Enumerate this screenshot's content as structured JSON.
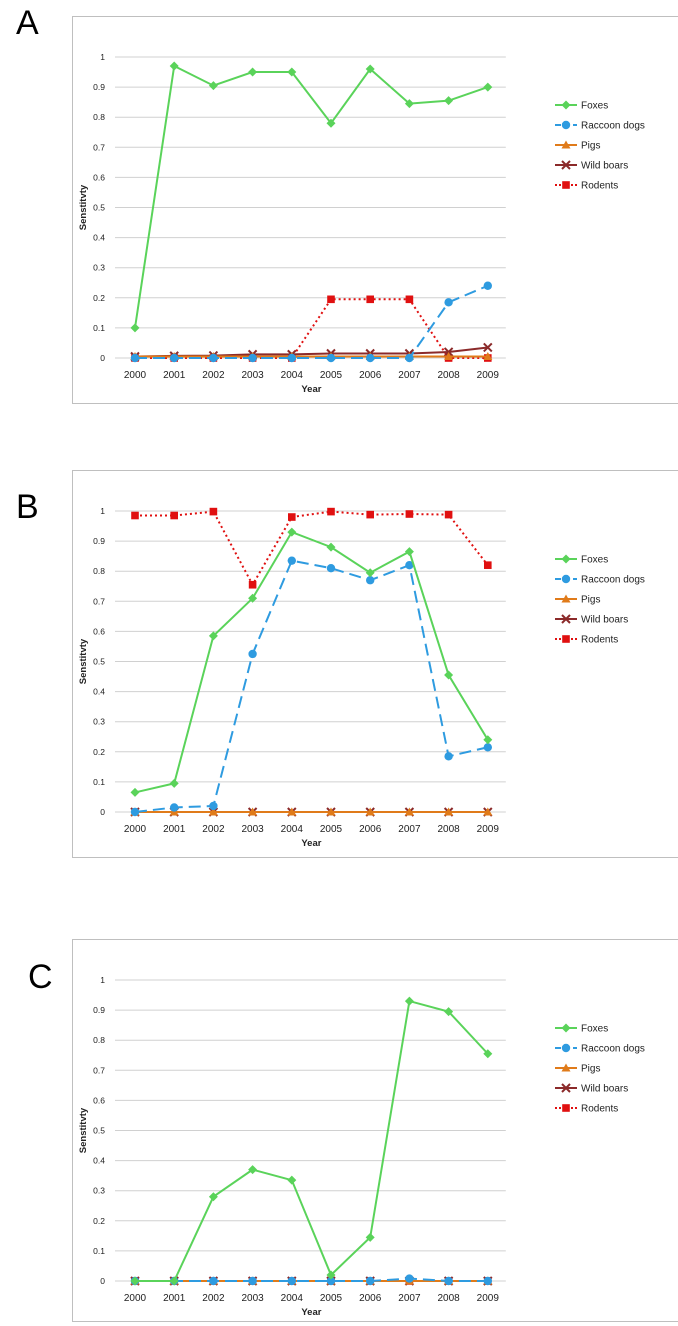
{
  "colors": {
    "foxes": "#5ad35a",
    "raccoon": "#2e9be0",
    "pigs": "#e07b1a",
    "boars": "#8b2a2a",
    "rodents": "#e01010",
    "grid": "#d0d0d0"
  },
  "legend_labels": [
    "Foxes",
    "Raccoon dogs",
    "Pigs",
    "Wild boars",
    "Rodents"
  ],
  "chart_data": [
    {
      "type": "line",
      "panel_label": "A",
      "xlabel": "Year",
      "ylabel": "Senstitvty",
      "ylim": [
        0,
        1
      ],
      "yticks": [
        "0",
        "0.1",
        "0.2",
        "0.3",
        "0.4",
        "0.5",
        "0.6",
        "0.7",
        "0.8",
        "0.9",
        "1"
      ],
      "categories": [
        "2000",
        "2001",
        "2002",
        "2003",
        "2004",
        "2005",
        "2006",
        "2007",
        "2008",
        "2009"
      ],
      "grid": true,
      "legend_position": "right",
      "series": [
        {
          "name": "Foxes",
          "values": [
            0.1,
            0.97,
            0.905,
            0.95,
            0.95,
            0.78,
            0.96,
            0.845,
            0.855,
            0.9
          ]
        },
        {
          "name": "Raccoon dogs",
          "values": [
            0,
            0,
            0,
            0,
            0,
            0,
            0,
            0,
            0.185,
            0.24
          ]
        },
        {
          "name": "Pigs",
          "values": [
            0.005,
            0.005,
            0.005,
            0.005,
            0.005,
            0.005,
            0.005,
            0.005,
            0.005,
            0.005
          ]
        },
        {
          "name": "Wild boars",
          "values": [
            0.005,
            0.007,
            0.008,
            0.012,
            0.012,
            0.015,
            0.015,
            0.015,
            0.02,
            0.035
          ]
        },
        {
          "name": "Rodents",
          "values": [
            0,
            0,
            0,
            0,
            0,
            0.195,
            0.195,
            0.195,
            0,
            0
          ]
        }
      ]
    },
    {
      "type": "line",
      "panel_label": "B",
      "xlabel": "Year",
      "ylabel": "Senstitvty",
      "ylim": [
        0,
        1
      ],
      "yticks": [
        "0",
        "0.1",
        "0.2",
        "0.3",
        "0.4",
        "0.5",
        "0.6",
        "0.7",
        "0.8",
        "0.9",
        "1"
      ],
      "categories": [
        "2000",
        "2001",
        "2002",
        "2003",
        "2004",
        "2005",
        "2006",
        "2007",
        "2008",
        "2009"
      ],
      "grid": true,
      "legend_position": "right",
      "series": [
        {
          "name": "Foxes",
          "values": [
            0.065,
            0.095,
            0.585,
            0.71,
            0.93,
            0.88,
            0.795,
            0.865,
            0.455,
            0.24
          ]
        },
        {
          "name": "Raccoon dogs",
          "values": [
            0,
            0.015,
            0.02,
            0.525,
            0.835,
            0.81,
            0.77,
            0.82,
            0.185,
            0.215
          ]
        },
        {
          "name": "Pigs",
          "values": [
            0,
            0,
            0,
            0,
            0,
            0,
            0,
            0,
            0,
            0
          ]
        },
        {
          "name": "Wild boars",
          "values": [
            0,
            0,
            0,
            0,
            0,
            0,
            0,
            0,
            0,
            0
          ]
        },
        {
          "name": "Rodents",
          "values": [
            0.985,
            0.985,
            0.998,
            0.755,
            0.98,
            0.998,
            0.988,
            0.99,
            0.988,
            0.82
          ]
        }
      ]
    },
    {
      "type": "line",
      "panel_label": "C",
      "xlabel": "Year",
      "ylabel": "Senstitvty",
      "ylim": [
        0,
        1
      ],
      "yticks": [
        "0",
        "0.1",
        "0.2",
        "0.3",
        "0.4",
        "0.5",
        "0.6",
        "0.7",
        "0.8",
        "0.9",
        "1"
      ],
      "categories": [
        "2000",
        "2001",
        "2002",
        "2003",
        "2004",
        "2005",
        "2006",
        "2007",
        "2008",
        "2009"
      ],
      "grid": true,
      "legend_position": "right",
      "series": [
        {
          "name": "Foxes",
          "values": [
            0,
            0,
            0.28,
            0.37,
            0.335,
            0.02,
            0.145,
            0.93,
            0.895,
            0.755
          ]
        },
        {
          "name": "Raccoon dogs",
          "values": [
            0,
            0,
            0,
            0,
            0,
            0,
            0,
            0.008,
            0,
            0
          ]
        },
        {
          "name": "Pigs",
          "values": [
            0,
            0,
            0,
            0,
            0,
            0,
            0,
            0,
            0,
            0
          ]
        },
        {
          "name": "Wild boars",
          "values": [
            0,
            0,
            0,
            0,
            0,
            0,
            0,
            0,
            0,
            0
          ]
        },
        {
          "name": "Rodents",
          "values": [
            0,
            0,
            0,
            0,
            0,
            0,
            0,
            0,
            0,
            0
          ]
        }
      ]
    }
  ]
}
